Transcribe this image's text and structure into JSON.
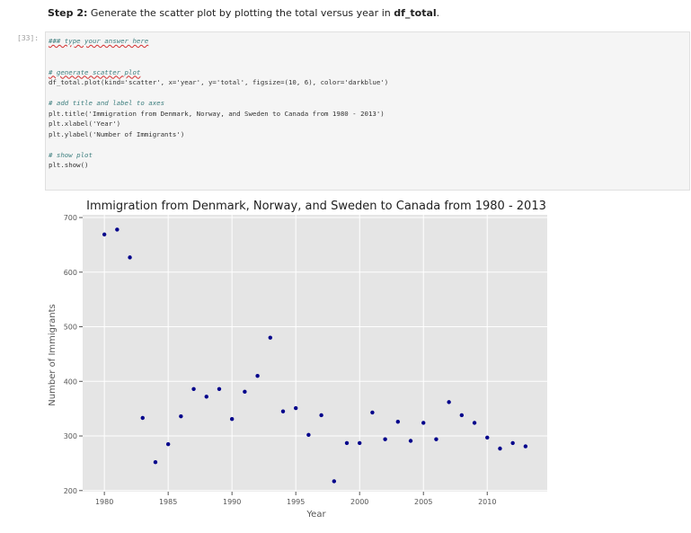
{
  "step": {
    "label": "Step 2:",
    "text_before": " Generate the scatter plot by plotting the total versus year in ",
    "bold_term": "df_total",
    "text_after": "."
  },
  "cell": {
    "prompt": "[33]:",
    "lines": [
      {
        "cls": "cm ul",
        "text": "### type your answer here"
      },
      {
        "cls": "",
        "text": ""
      },
      {
        "cls": "",
        "text": ""
      },
      {
        "cls": "cm ul",
        "text": "# generate scatter plot"
      },
      {
        "cls": "",
        "text": "df_total.plot(kind='scatter', x='year', y='total', figsize=(10, 6), color='darkblue')"
      },
      {
        "cls": "",
        "text": ""
      },
      {
        "cls": "cm",
        "text": "# add title and label to axes"
      },
      {
        "cls": "",
        "text": "plt.title('Immigration from Denmark, Norway, and Sweden to Canada from 1980 - 2013')"
      },
      {
        "cls": "",
        "text": "plt.xlabel('Year')"
      },
      {
        "cls": "",
        "text": "plt.ylabel('Number of Immigrants')"
      },
      {
        "cls": "",
        "text": ""
      },
      {
        "cls": "cm",
        "text": "# show plot"
      },
      {
        "cls": "",
        "text": "plt.show()"
      }
    ]
  },
  "chart_data": {
    "type": "scatter",
    "title": "Immigration from Denmark, Norway, and Sweden to Canada from 1980 - 2013",
    "xlabel": "Year",
    "ylabel": "Number of Immigrants",
    "xlim": [
      1978.3,
      2014.7
    ],
    "ylim": [
      198,
      705
    ],
    "xticks": [
      1980,
      1985,
      1990,
      1995,
      2000,
      2005,
      2010
    ],
    "yticks": [
      200,
      300,
      400,
      500,
      600,
      700
    ],
    "grid": true,
    "style": "ggplot",
    "color": "#00008b",
    "background": "#e5e5e5",
    "points": [
      {
        "x": 1980,
        "y": 669
      },
      {
        "x": 1981,
        "y": 678
      },
      {
        "x": 1982,
        "y": 627
      },
      {
        "x": 1983,
        "y": 333
      },
      {
        "x": 1984,
        "y": 252
      },
      {
        "x": 1985,
        "y": 285
      },
      {
        "x": 1986,
        "y": 336
      },
      {
        "x": 1987,
        "y": 386
      },
      {
        "x": 1988,
        "y": 372
      },
      {
        "x": 1989,
        "y": 386
      },
      {
        "x": 1990,
        "y": 331
      },
      {
        "x": 1991,
        "y": 381
      },
      {
        "x": 1992,
        "y": 410
      },
      {
        "x": 1993,
        "y": 480
      },
      {
        "x": 1994,
        "y": 345
      },
      {
        "x": 1995,
        "y": 351
      },
      {
        "x": 1996,
        "y": 302
      },
      {
        "x": 1997,
        "y": 338
      },
      {
        "x": 1998,
        "y": 217
      },
      {
        "x": 1999,
        "y": 287
      },
      {
        "x": 2000,
        "y": 287
      },
      {
        "x": 2001,
        "y": 343
      },
      {
        "x": 2002,
        "y": 294
      },
      {
        "x": 2003,
        "y": 326
      },
      {
        "x": 2004,
        "y": 291
      },
      {
        "x": 2005,
        "y": 324
      },
      {
        "x": 2006,
        "y": 294
      },
      {
        "x": 2007,
        "y": 362
      },
      {
        "x": 2008,
        "y": 338
      },
      {
        "x": 2009,
        "y": 324
      },
      {
        "x": 2010,
        "y": 297
      },
      {
        "x": 2011,
        "y": 277
      },
      {
        "x": 2012,
        "y": 287
      },
      {
        "x": 2013,
        "y": 281
      }
    ]
  }
}
